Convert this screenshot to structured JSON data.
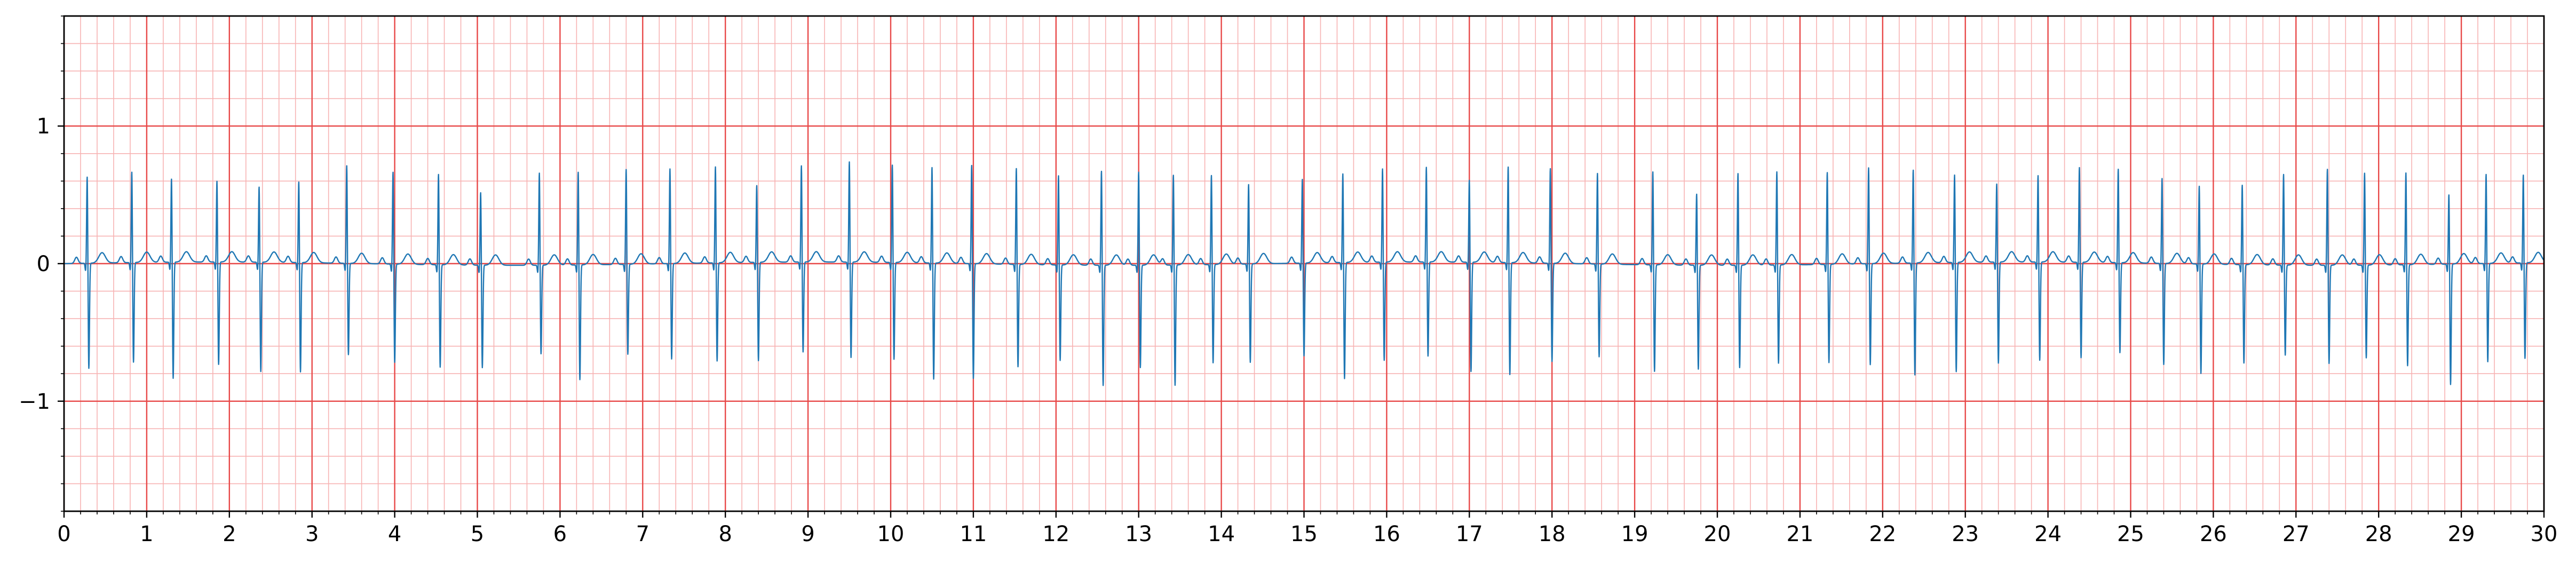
{
  "chart_data": {
    "type": "line",
    "title": "",
    "xlabel": "",
    "ylabel": "",
    "xlim": [
      0,
      30
    ],
    "ylim": [
      -1.8,
      1.8
    ],
    "grid": true,
    "x_ticks": [
      0,
      1,
      2,
      3,
      4,
      5,
      6,
      7,
      8,
      9,
      10,
      11,
      12,
      13,
      14,
      15,
      16,
      17,
      18,
      19,
      20,
      21,
      22,
      23,
      24,
      25,
      26,
      27,
      28,
      29,
      30
    ],
    "x_tick_labels": [
      "0",
      "1",
      "2",
      "3",
      "4",
      "5",
      "6",
      "7",
      "8",
      "9",
      "10",
      "11",
      "12",
      "13",
      "14",
      "15",
      "16",
      "17",
      "18",
      "19",
      "20",
      "21",
      "22",
      "23",
      "24",
      "25",
      "26",
      "27",
      "28",
      "29",
      "30"
    ],
    "y_ticks": [
      -1,
      0,
      1
    ],
    "y_tick_labels": [
      "−1",
      "0",
      "1"
    ],
    "major_grid_x_step": 1,
    "major_grid_y_step": 1,
    "minor_grid_step": 0.2,
    "colors": {
      "signal": "#1f77b4",
      "major_grid": "#e84848",
      "minor_grid": "#f7b3b3",
      "axes": "#000000"
    },
    "series": [
      {
        "beat_times": [
          0.28,
          0.82,
          1.3,
          1.85,
          2.36,
          2.84,
          3.42,
          3.98,
          4.53,
          5.04,
          5.75,
          6.22,
          6.8,
          7.33,
          7.88,
          8.38,
          8.92,
          9.5,
          10.02,
          10.5,
          10.98,
          11.52,
          12.03,
          12.55,
          13.0,
          13.42,
          13.88,
          14.33,
          14.98,
          15.47,
          15.95,
          16.48,
          17.0,
          17.47,
          17.98,
          18.55,
          19.22,
          19.75,
          20.25,
          20.72,
          21.33,
          21.83,
          22.37,
          22.87,
          23.38,
          23.88,
          24.38,
          24.85,
          25.38,
          25.83,
          26.35,
          26.85,
          27.38,
          27.83,
          28.33,
          28.85,
          29.3,
          29.75
        ],
        "r_peaks": [
          0.65,
          0.68,
          0.63,
          0.61,
          0.57,
          0.61,
          0.73,
          0.69,
          0.68,
          0.55,
          0.69,
          0.7,
          0.71,
          0.71,
          0.72,
          0.58,
          0.72,
          0.75,
          0.73,
          0.72,
          0.74,
          0.72,
          0.67,
          0.71,
          0.7,
          0.68,
          0.67,
          0.6,
          0.63,
          0.67,
          0.7,
          0.71,
          0.62,
          0.72,
          0.71,
          0.68,
          0.7,
          0.54,
          0.69,
          0.7,
          0.69,
          0.72,
          0.7,
          0.66,
          0.59,
          0.65,
          0.71,
          0.7,
          0.64,
          0.59,
          0.6,
          0.68,
          0.72,
          0.69,
          0.69,
          0.53,
          0.67,
          0.66
        ],
        "s_troughs": [
          -0.77,
          -0.73,
          -0.85,
          -0.75,
          -0.8,
          -0.8,
          -0.67,
          -0.72,
          -0.75,
          -0.75,
          -0.65,
          -0.84,
          -0.66,
          -0.7,
          -0.72,
          -0.72,
          -0.66,
          -0.7,
          -0.71,
          -0.85,
          -0.84,
          -0.75,
          -0.7,
          -0.88,
          -0.75,
          -0.88,
          -0.72,
          -0.72,
          -0.68,
          -0.85,
          -0.72,
          -0.69,
          -0.8,
          -0.82,
          -0.72,
          -0.68,
          -0.78,
          -0.76,
          -0.75,
          -0.72,
          -0.72,
          -0.74,
          -0.82,
          -0.8,
          -0.74,
          -0.72,
          -0.7,
          -0.66,
          -0.74,
          -0.8,
          -0.72,
          -0.66,
          -0.72,
          -0.68,
          -0.74,
          -0.88,
          -0.72,
          -0.7
        ]
      }
    ]
  }
}
